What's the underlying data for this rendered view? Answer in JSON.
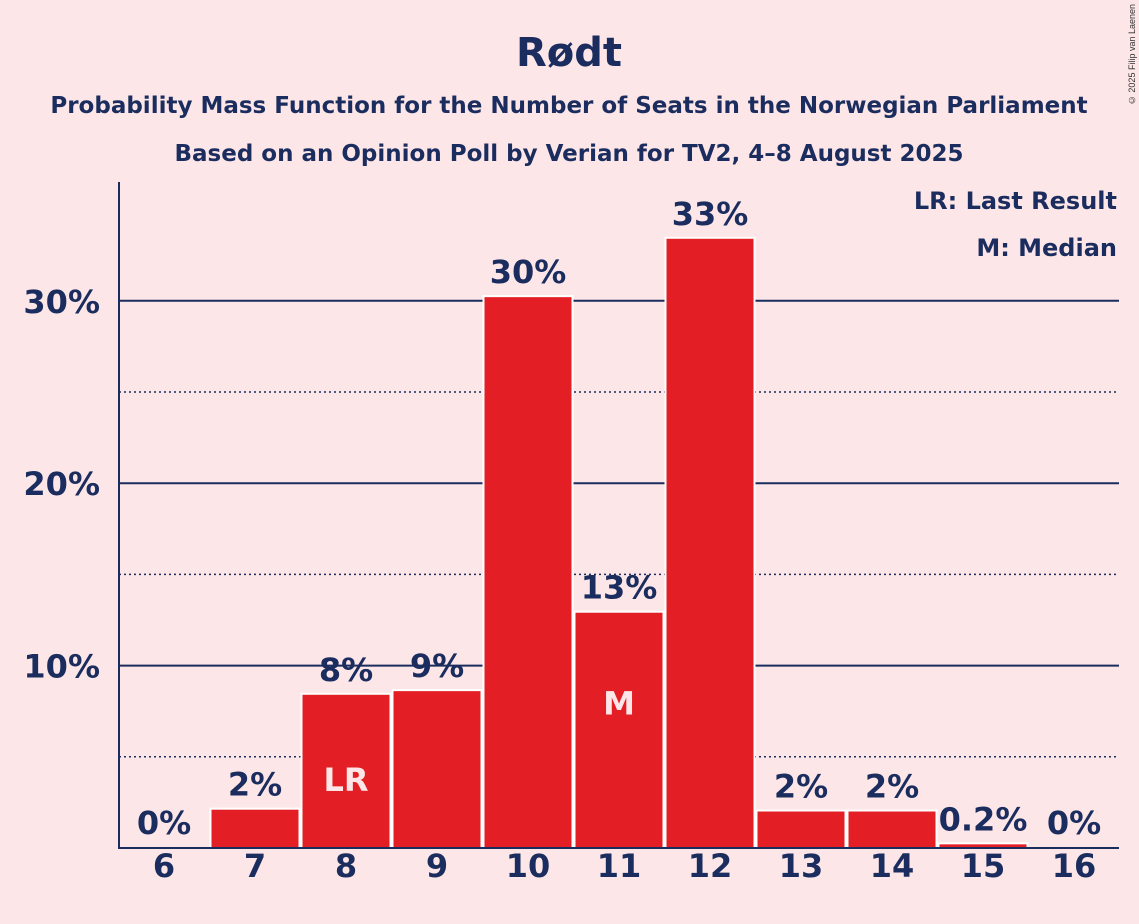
{
  "chart_data": {
    "type": "bar",
    "title": "Rødt",
    "subtitle_1": "Probability Mass Function for the Number of Seats in the Norwegian Parliament",
    "subtitle_2": "Based on an Opinion Poll by Verian for TV2, 4–8 August 2025",
    "categories": [
      "6",
      "7",
      "8",
      "9",
      "10",
      "11",
      "12",
      "13",
      "14",
      "15",
      "16"
    ],
    "values": [
      0,
      2.1,
      8.4,
      8.6,
      30.2,
      12.9,
      33.4,
      2.0,
      2.0,
      0.2,
      0
    ],
    "value_labels": [
      "0%",
      "2%",
      "8%",
      "9%",
      "30%",
      "13%",
      "33%",
      "2%",
      "2%",
      "0.2%",
      "0%"
    ],
    "bar_markers": {
      "8": "LR",
      "11": "M"
    },
    "legend": [
      "LR: Last Result",
      "M: Median"
    ],
    "legend_position": "top-right",
    "y_ticks": [
      "10%",
      "20%",
      "30%"
    ],
    "y_tick_values": [
      10,
      20,
      30
    ],
    "ylim": [
      0,
      36.5
    ],
    "grid": "solid lines at 10% steps, dotted lines at 5% steps",
    "colors": {
      "bar": "#e31e24",
      "text": "#1a2d5e",
      "background": "#fde6e7",
      "marker_text": "#fde6e7"
    }
  },
  "copyright": "© 2025 Filip van Laenen"
}
